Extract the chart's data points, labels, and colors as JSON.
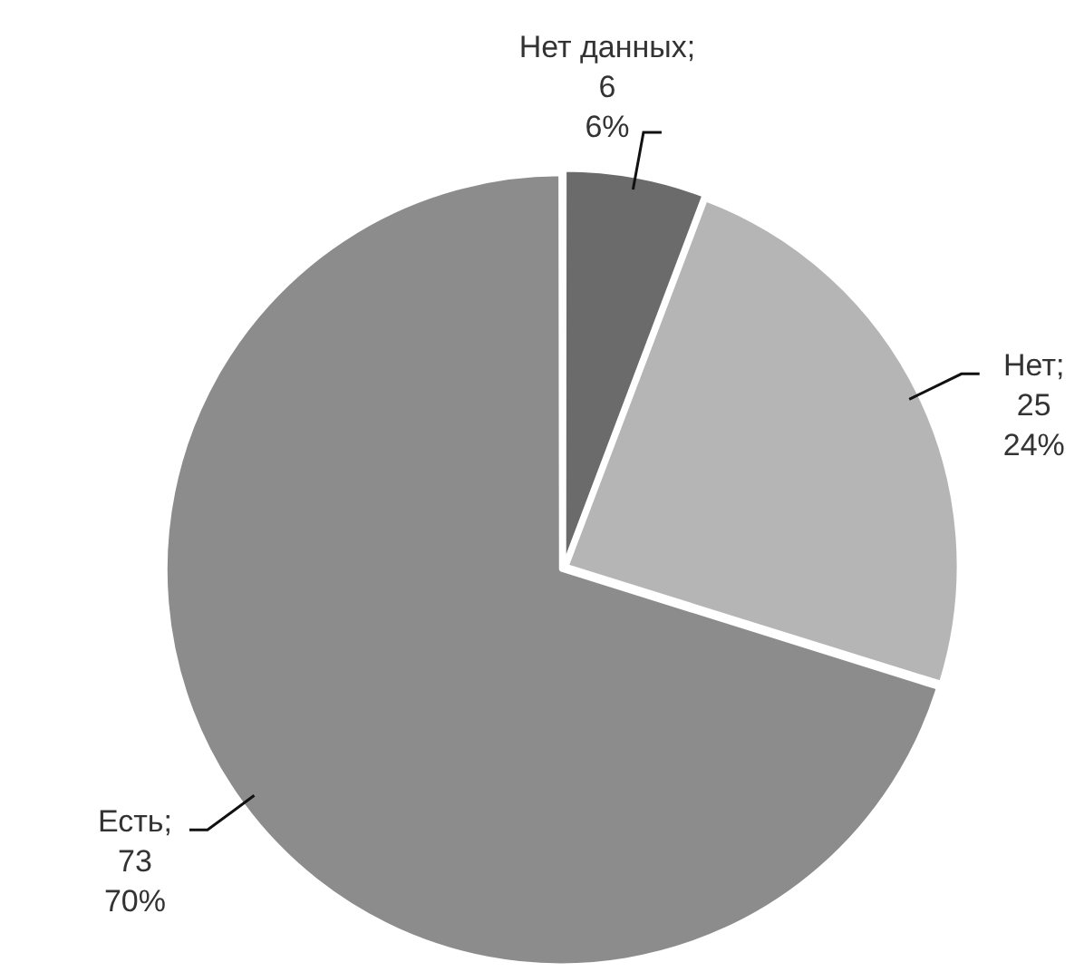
{
  "chart_data": {
    "type": "pie",
    "categories": [
      "Нет данных",
      "Нет",
      "Есть"
    ],
    "values": [
      6,
      25,
      73
    ],
    "colors": [
      "#6b6b6b",
      "#b5b5b5",
      "#8c8c8c"
    ],
    "value_labels": [
      ";\n6\n6%",
      ";\n25\n24%",
      ";\n73\n70%"
    ],
    "legend": false
  }
}
